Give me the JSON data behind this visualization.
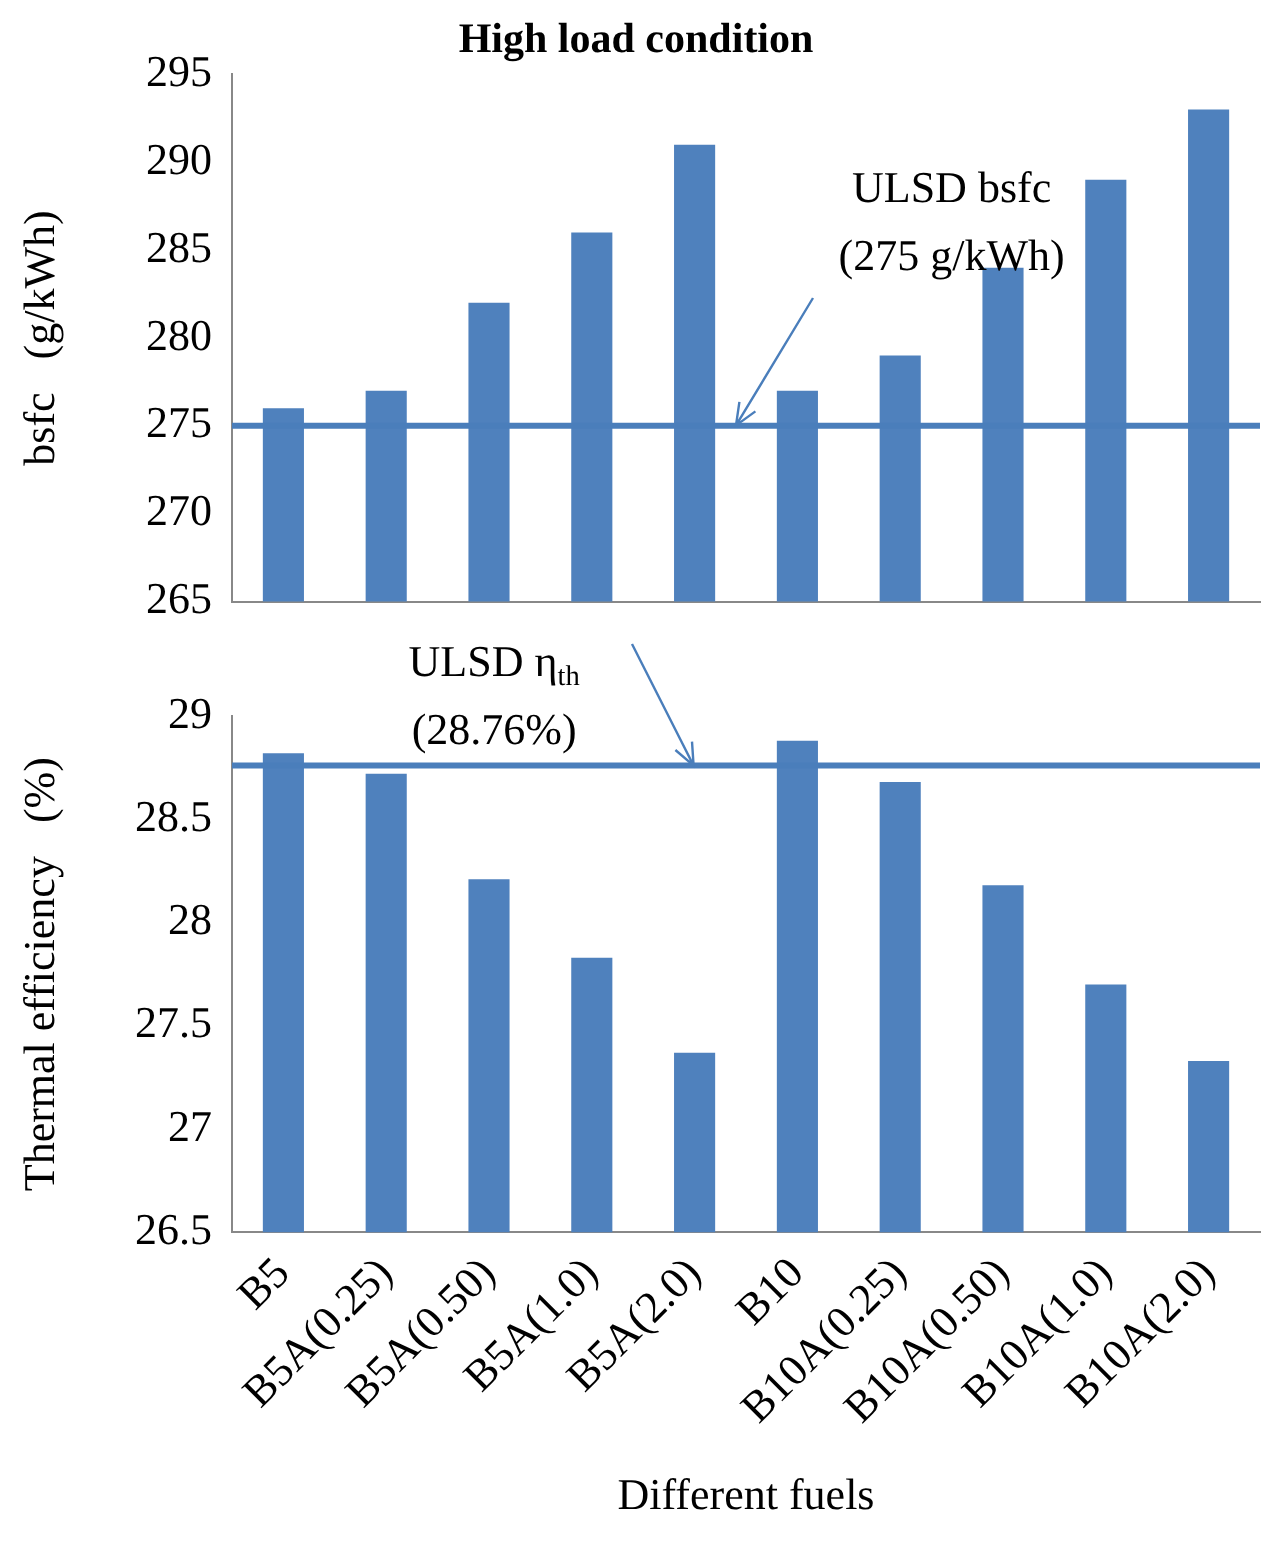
{
  "chart_data": [
    {
      "type": "bar",
      "title": "High load condition",
      "ylabel": "bsfc   (g/kWh)",
      "categories": [
        null,
        null,
        null,
        null,
        null,
        null,
        null,
        null,
        null,
        null
      ],
      "values": [
        276,
        277,
        282,
        286,
        291,
        277,
        279,
        284,
        289,
        293
      ],
      "color": "#4f81bd",
      "ylim": [
        265,
        295
      ],
      "yticks": [
        265,
        270,
        275,
        280,
        285,
        290,
        295
      ],
      "tick_labels": "y",
      "ref_lines": [
        {
          "axis": "y",
          "value": 275,
          "label": "ULSD bsfc\n(275 g/kWh)",
          "color": "#4a7ebb"
        }
      ]
    },
    {
      "type": "bar",
      "xlabel": "Different fuels",
      "ylabel": "Thermal efficiency   (%)",
      "categories": [
        "B5",
        "B5A(0.25)",
        "B5A(0.50)",
        "B5A(1.0)",
        "B5A(2.0)",
        "B10",
        "B10A(0.25)",
        "B10A(0.50)",
        "B10A(1.0)",
        "B10A(2.0)"
      ],
      "values": [
        28.82,
        28.72,
        28.21,
        27.83,
        27.37,
        28.88,
        28.68,
        28.18,
        27.7,
        27.33
      ],
      "color": "#4f81bd",
      "ylim": [
        26.5,
        29
      ],
      "yticks": [
        26.5,
        27,
        27.5,
        28,
        28.5,
        29
      ],
      "ref_lines": [
        {
          "axis": "y",
          "value": 28.76,
          "label": "ULSD η$_{th}$\n(28.76%)",
          "color": "#4a7ebb"
        }
      ]
    }
  ]
}
